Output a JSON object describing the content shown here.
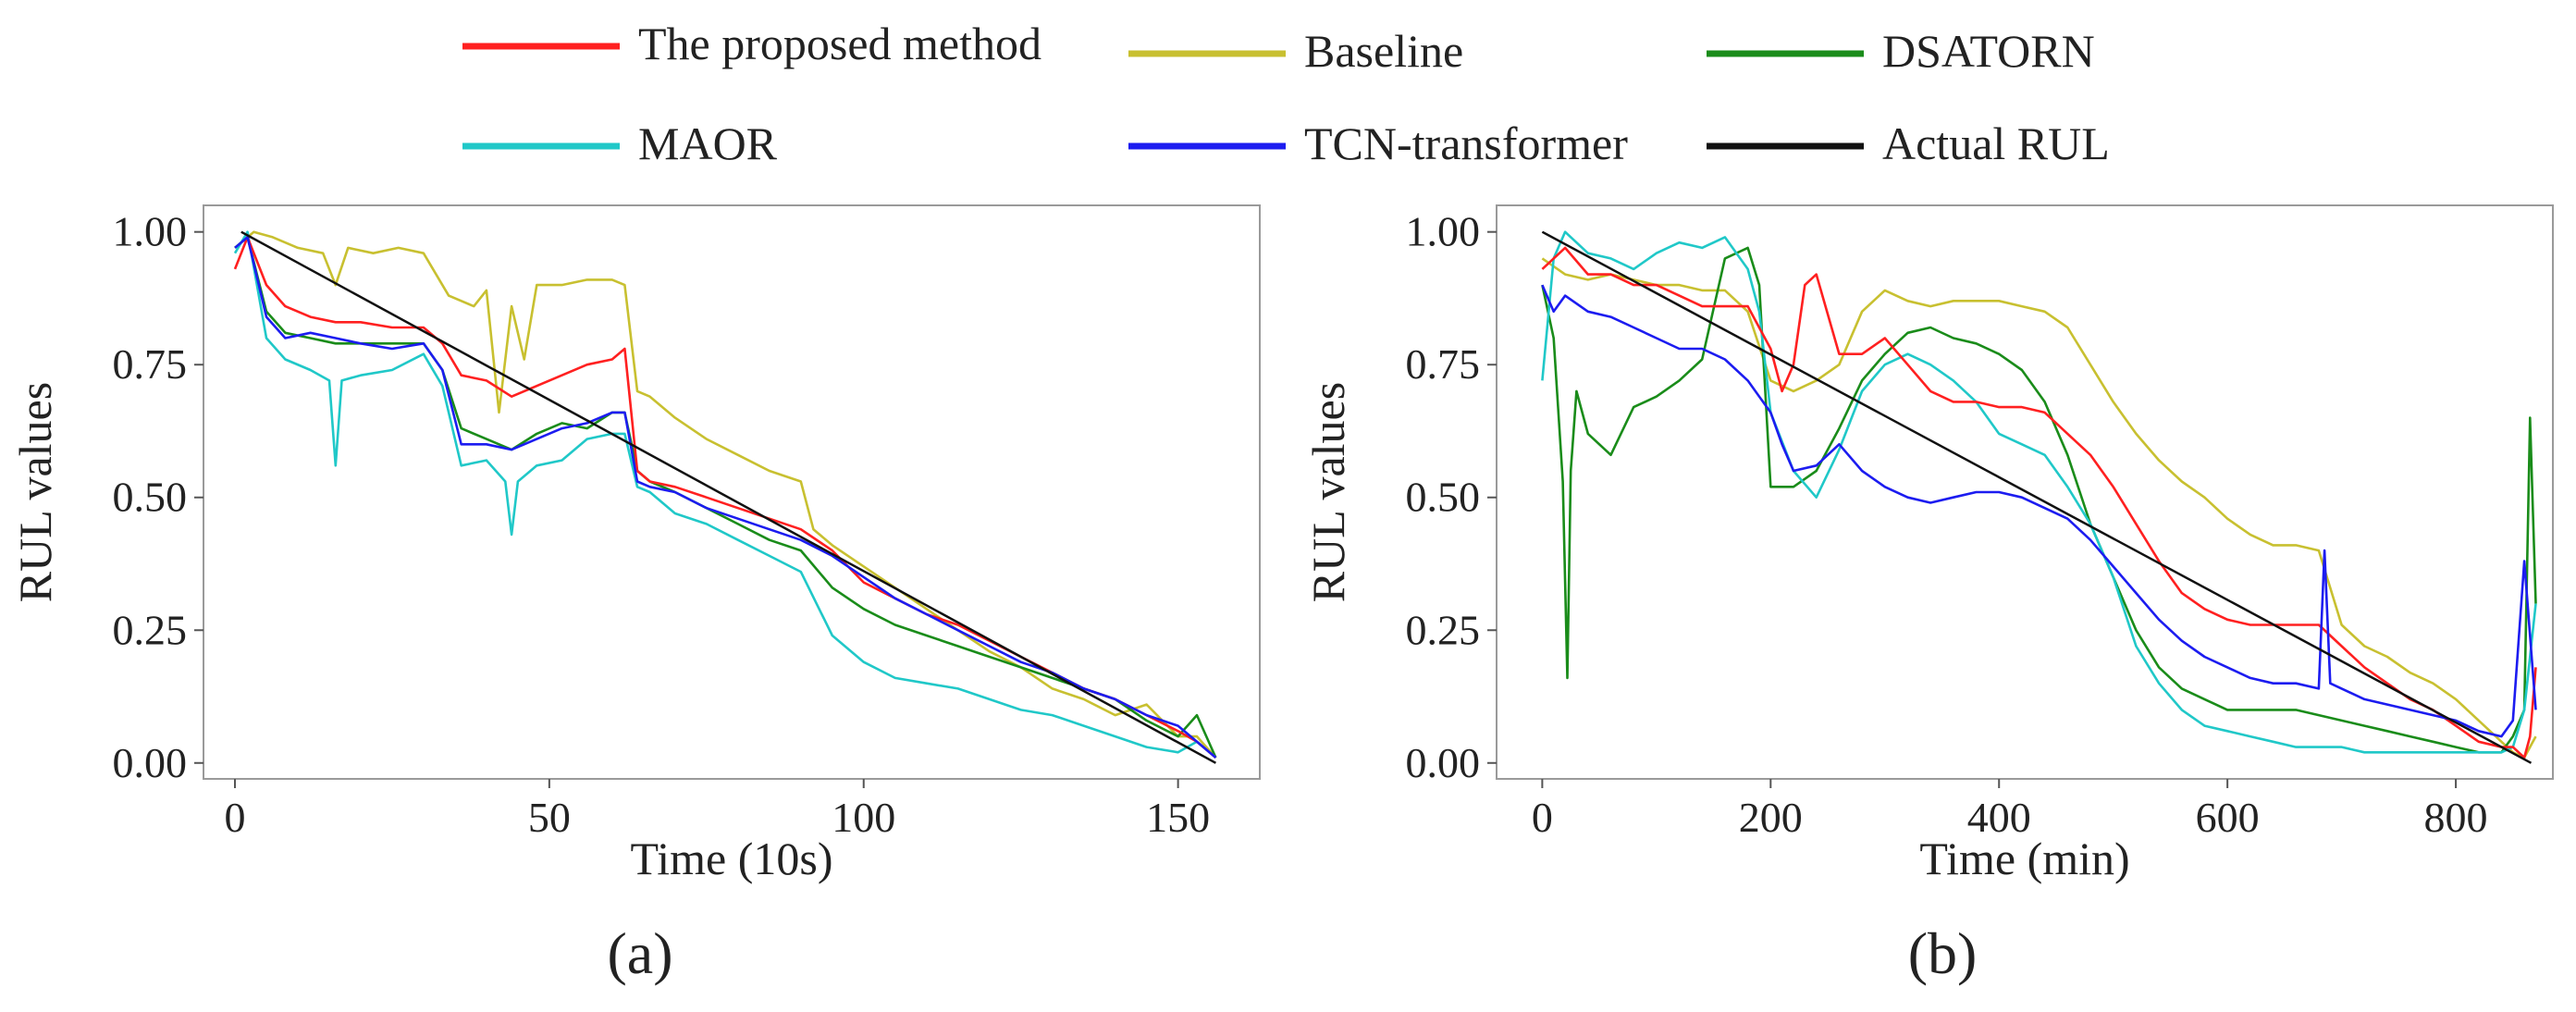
{
  "legend": [
    {
      "name": "The proposed method",
      "color": "#ff2020"
    },
    {
      "name": "Baseline",
      "color": "#c8c030"
    },
    {
      "name": "DSATORN",
      "color": "#1a8c1a"
    },
    {
      "name": "MAOR",
      "color": "#20c8c8"
    },
    {
      "name": "TCN-transformer",
      "color": "#1c1cf0"
    },
    {
      "name": "Actual RUL",
      "color": "#111111"
    }
  ],
  "chart_data": [
    {
      "type": "line",
      "panel_label": "(a)",
      "xlabel": "Time (10s)",
      "ylabel": "RUL values",
      "xlim": [
        -5,
        163
      ],
      "ylim": [
        -0.03,
        1.05
      ],
      "xticks": [
        "0",
        "50",
        "100",
        "150"
      ],
      "yticks": [
        "0.00",
        "0.25",
        "0.50",
        "0.75",
        "1.00"
      ],
      "grid": false,
      "series": [
        {
          "name": "The proposed method",
          "x": [
            0,
            2,
            5,
            8,
            12,
            16,
            20,
            25,
            30,
            33,
            36,
            40,
            44,
            48,
            52,
            56,
            60,
            62,
            64,
            66,
            70,
            75,
            80,
            85,
            90,
            95,
            100,
            105,
            110,
            115,
            120,
            125,
            130,
            135,
            140,
            145,
            150,
            153,
            156
          ],
          "y": [
            0.93,
            0.99,
            0.9,
            0.86,
            0.84,
            0.83,
            0.83,
            0.82,
            0.82,
            0.79,
            0.73,
            0.72,
            0.69,
            0.71,
            0.73,
            0.75,
            0.76,
            0.78,
            0.55,
            0.53,
            0.52,
            0.5,
            0.48,
            0.46,
            0.44,
            0.4,
            0.34,
            0.31,
            0.28,
            0.26,
            0.23,
            0.2,
            0.17,
            0.14,
            0.12,
            0.09,
            0.06,
            0.04,
            0.01
          ]
        },
        {
          "name": "Baseline",
          "x": [
            0,
            3,
            6,
            10,
            14,
            16,
            18,
            22,
            26,
            30,
            34,
            38,
            40,
            42,
            44,
            46,
            48,
            52,
            56,
            60,
            62,
            64,
            66,
            70,
            75,
            80,
            85,
            90,
            92,
            95,
            100,
            105,
            110,
            115,
            120,
            125,
            130,
            135,
            140,
            145,
            150,
            153,
            156
          ],
          "y": [
            0.97,
            1.0,
            0.99,
            0.97,
            0.96,
            0.9,
            0.97,
            0.96,
            0.97,
            0.96,
            0.88,
            0.86,
            0.89,
            0.66,
            0.86,
            0.76,
            0.9,
            0.9,
            0.91,
            0.91,
            0.9,
            0.7,
            0.69,
            0.65,
            0.61,
            0.58,
            0.55,
            0.53,
            0.44,
            0.41,
            0.37,
            0.33,
            0.29,
            0.25,
            0.21,
            0.18,
            0.14,
            0.12,
            0.09,
            0.11,
            0.05,
            0.05,
            0.01
          ]
        },
        {
          "name": "DSATORN",
          "x": [
            0,
            2,
            5,
            8,
            12,
            16,
            20,
            25,
            30,
            33,
            36,
            40,
            44,
            48,
            52,
            56,
            60,
            62,
            64,
            66,
            70,
            75,
            80,
            85,
            90,
            95,
            100,
            105,
            110,
            115,
            120,
            125,
            130,
            135,
            140,
            145,
            150,
            153,
            156
          ],
          "y": [
            0.97,
            0.99,
            0.85,
            0.81,
            0.8,
            0.79,
            0.79,
            0.79,
            0.79,
            0.74,
            0.63,
            0.61,
            0.59,
            0.62,
            0.64,
            0.63,
            0.66,
            0.66,
            0.55,
            0.53,
            0.51,
            0.48,
            0.45,
            0.42,
            0.4,
            0.33,
            0.29,
            0.26,
            0.24,
            0.22,
            0.2,
            0.18,
            0.16,
            0.14,
            0.12,
            0.08,
            0.05,
            0.09,
            0.01
          ]
        },
        {
          "name": "MAOR",
          "x": [
            0,
            2,
            5,
            8,
            12,
            15,
            16,
            17,
            20,
            25,
            30,
            33,
            36,
            40,
            43,
            44,
            45,
            48,
            52,
            56,
            60,
            62,
            64,
            66,
            70,
            75,
            80,
            85,
            90,
            95,
            100,
            105,
            110,
            115,
            120,
            125,
            130,
            135,
            140,
            145,
            150,
            153,
            156
          ],
          "y": [
            0.96,
            1.0,
            0.8,
            0.76,
            0.74,
            0.72,
            0.56,
            0.72,
            0.73,
            0.74,
            0.77,
            0.71,
            0.56,
            0.57,
            0.53,
            0.43,
            0.53,
            0.56,
            0.57,
            0.61,
            0.62,
            0.62,
            0.52,
            0.51,
            0.47,
            0.45,
            0.42,
            0.39,
            0.36,
            0.24,
            0.19,
            0.16,
            0.15,
            0.14,
            0.12,
            0.1,
            0.09,
            0.07,
            0.05,
            0.03,
            0.02,
            0.04,
            0.01
          ]
        },
        {
          "name": "TCN-transformer",
          "x": [
            0,
            2,
            5,
            8,
            12,
            16,
            20,
            25,
            30,
            33,
            36,
            40,
            44,
            48,
            52,
            56,
            60,
            62,
            64,
            66,
            70,
            75,
            80,
            85,
            90,
            95,
            100,
            105,
            110,
            115,
            120,
            125,
            130,
            135,
            140,
            145,
            150,
            153,
            156
          ],
          "y": [
            0.97,
            0.99,
            0.84,
            0.8,
            0.81,
            0.8,
            0.79,
            0.78,
            0.79,
            0.74,
            0.6,
            0.6,
            0.59,
            0.61,
            0.63,
            0.64,
            0.66,
            0.66,
            0.53,
            0.52,
            0.51,
            0.48,
            0.46,
            0.44,
            0.42,
            0.39,
            0.35,
            0.31,
            0.28,
            0.25,
            0.22,
            0.19,
            0.17,
            0.14,
            0.12,
            0.09,
            0.07,
            0.04,
            0.01
          ]
        },
        {
          "name": "Actual RUL",
          "x": [
            1,
            156
          ],
          "y": [
            1.0,
            0.0
          ]
        }
      ]
    },
    {
      "type": "line",
      "panel_label": "(b)",
      "xlabel": "Time (min)",
      "ylabel": "RUL values",
      "xlim": [
        -40,
        885
      ],
      "ylim": [
        -0.03,
        1.05
      ],
      "xticks": [
        "0",
        "200",
        "400",
        "600",
        "800"
      ],
      "yticks": [
        "0.00",
        "0.25",
        "0.50",
        "0.75",
        "1.00"
      ],
      "grid": false,
      "series": [
        {
          "name": "The proposed method",
          "x": [
            0,
            20,
            40,
            60,
            80,
            100,
            120,
            140,
            160,
            180,
            200,
            210,
            220,
            230,
            240,
            260,
            280,
            300,
            320,
            340,
            360,
            380,
            400,
            420,
            440,
            460,
            480,
            500,
            520,
            540,
            560,
            580,
            600,
            620,
            640,
            660,
            680,
            700,
            720,
            740,
            760,
            780,
            800,
            820,
            840,
            850,
            860,
            865,
            870
          ],
          "y": [
            0.93,
            0.97,
            0.92,
            0.92,
            0.9,
            0.9,
            0.88,
            0.86,
            0.86,
            0.86,
            0.78,
            0.7,
            0.75,
            0.9,
            0.92,
            0.77,
            0.77,
            0.8,
            0.75,
            0.7,
            0.68,
            0.68,
            0.67,
            0.67,
            0.66,
            0.62,
            0.58,
            0.52,
            0.45,
            0.38,
            0.32,
            0.29,
            0.27,
            0.26,
            0.26,
            0.26,
            0.26,
            0.22,
            0.18,
            0.15,
            0.12,
            0.1,
            0.07,
            0.04,
            0.03,
            0.03,
            0.01,
            0.05,
            0.18
          ]
        },
        {
          "name": "Baseline",
          "x": [
            0,
            20,
            40,
            60,
            80,
            100,
            120,
            140,
            160,
            180,
            200,
            220,
            240,
            260,
            280,
            300,
            320,
            340,
            360,
            380,
            400,
            420,
            440,
            460,
            480,
            500,
            520,
            540,
            560,
            580,
            600,
            620,
            640,
            660,
            680,
            700,
            720,
            740,
            760,
            780,
            800,
            820,
            840,
            850,
            860,
            870
          ],
          "y": [
            0.95,
            0.92,
            0.91,
            0.92,
            0.91,
            0.9,
            0.9,
            0.89,
            0.89,
            0.85,
            0.72,
            0.7,
            0.72,
            0.75,
            0.85,
            0.89,
            0.87,
            0.86,
            0.87,
            0.87,
            0.87,
            0.86,
            0.85,
            0.82,
            0.75,
            0.68,
            0.62,
            0.57,
            0.53,
            0.5,
            0.46,
            0.43,
            0.41,
            0.41,
            0.4,
            0.26,
            0.22,
            0.2,
            0.17,
            0.15,
            0.12,
            0.08,
            0.04,
            0.02,
            0.01,
            0.05
          ]
        },
        {
          "name": "DSATORN",
          "x": [
            0,
            10,
            18,
            22,
            25,
            30,
            40,
            60,
            80,
            100,
            120,
            140,
            160,
            180,
            190,
            200,
            220,
            240,
            260,
            280,
            300,
            320,
            340,
            360,
            380,
            400,
            420,
            440,
            460,
            480,
            500,
            520,
            540,
            560,
            580,
            600,
            620,
            640,
            660,
            680,
            700,
            720,
            740,
            760,
            780,
            800,
            820,
            840,
            850,
            860,
            865,
            870
          ],
          "y": [
            0.9,
            0.8,
            0.53,
            0.16,
            0.55,
            0.7,
            0.62,
            0.58,
            0.67,
            0.69,
            0.72,
            0.76,
            0.95,
            0.97,
            0.9,
            0.52,
            0.52,
            0.55,
            0.63,
            0.72,
            0.77,
            0.81,
            0.82,
            0.8,
            0.79,
            0.77,
            0.74,
            0.68,
            0.58,
            0.45,
            0.35,
            0.25,
            0.18,
            0.14,
            0.12,
            0.1,
            0.1,
            0.1,
            0.1,
            0.09,
            0.08,
            0.07,
            0.06,
            0.05,
            0.04,
            0.03,
            0.02,
            0.02,
            0.05,
            0.1,
            0.65,
            0.3
          ]
        },
        {
          "name": "MAOR",
          "x": [
            0,
            10,
            20,
            40,
            60,
            80,
            100,
            120,
            140,
            160,
            180,
            190,
            200,
            220,
            240,
            260,
            280,
            300,
            320,
            340,
            360,
            380,
            400,
            420,
            440,
            460,
            480,
            500,
            520,
            540,
            560,
            580,
            600,
            620,
            640,
            660,
            680,
            700,
            720,
            740,
            760,
            780,
            800,
            820,
            840,
            850,
            860,
            870
          ],
          "y": [
            0.72,
            0.95,
            1.0,
            0.96,
            0.95,
            0.93,
            0.96,
            0.98,
            0.97,
            0.99,
            0.93,
            0.85,
            0.66,
            0.55,
            0.5,
            0.59,
            0.7,
            0.75,
            0.77,
            0.75,
            0.72,
            0.68,
            0.62,
            0.6,
            0.58,
            0.52,
            0.45,
            0.35,
            0.22,
            0.15,
            0.1,
            0.07,
            0.06,
            0.05,
            0.04,
            0.03,
            0.03,
            0.03,
            0.02,
            0.02,
            0.02,
            0.02,
            0.02,
            0.02,
            0.02,
            0.03,
            0.1,
            0.3
          ]
        },
        {
          "name": "TCN-transformer",
          "x": [
            0,
            10,
            20,
            40,
            60,
            80,
            100,
            120,
            140,
            160,
            180,
            200,
            210,
            220,
            240,
            260,
            280,
            300,
            320,
            340,
            360,
            380,
            400,
            420,
            440,
            460,
            480,
            500,
            520,
            540,
            560,
            580,
            600,
            620,
            640,
            660,
            680,
            685,
            690,
            700,
            720,
            740,
            760,
            780,
            800,
            820,
            840,
            850,
            860,
            870
          ],
          "y": [
            0.9,
            0.85,
            0.88,
            0.85,
            0.84,
            0.82,
            0.8,
            0.78,
            0.78,
            0.76,
            0.72,
            0.66,
            0.6,
            0.55,
            0.56,
            0.6,
            0.55,
            0.52,
            0.5,
            0.49,
            0.5,
            0.51,
            0.51,
            0.5,
            0.48,
            0.46,
            0.42,
            0.37,
            0.32,
            0.27,
            0.23,
            0.2,
            0.18,
            0.16,
            0.15,
            0.15,
            0.14,
            0.4,
            0.15,
            0.14,
            0.12,
            0.11,
            0.1,
            0.09,
            0.08,
            0.06,
            0.05,
            0.08,
            0.38,
            0.1
          ]
        },
        {
          "name": "Actual RUL",
          "x": [
            0,
            866
          ],
          "y": [
            1.0,
            0.0
          ]
        }
      ]
    }
  ]
}
